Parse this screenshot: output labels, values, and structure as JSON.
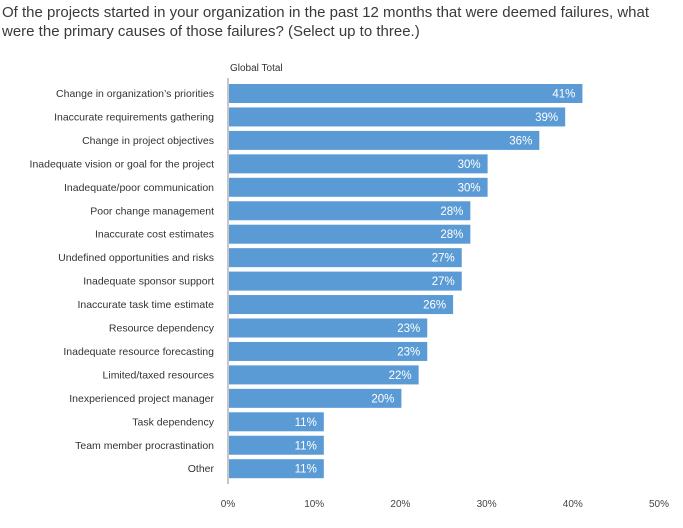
{
  "title": "Of the projects started in your organization in the past 12 months that were deemed failures, what were the primary causes of those failures? (Select up to three.)",
  "chart_data": {
    "type": "bar",
    "orientation": "horizontal",
    "series_name": "Global Total",
    "categories": [
      "Change in organization’s priorities",
      "Inaccurate requirements gathering",
      "Change in project objectives",
      "Inadequate vision or goal for the project",
      "Inadequate/poor communication",
      "Poor change management",
      "Inaccurate cost estimates",
      "Undefined opportunities and risks",
      "Inadequate sponsor support",
      "Inaccurate task time estimate",
      "Resource dependency",
      "Inadequate resource forecasting",
      "Limited/taxed resources",
      "Inexperienced project manager",
      "Task dependency",
      "Team member procrastination",
      "Other"
    ],
    "values": [
      41,
      39,
      36,
      30,
      30,
      28,
      28,
      27,
      27,
      26,
      23,
      23,
      22,
      20,
      11,
      11,
      11
    ],
    "value_labels": [
      "41%",
      "39%",
      "36%",
      "30%",
      "30%",
      "28%",
      "28%",
      "27%",
      "27%",
      "26%",
      "23%",
      "23%",
      "22%",
      "20%",
      "11%",
      "11%",
      "11%"
    ],
    "xlim": [
      0,
      50
    ],
    "xticks": [
      0,
      10,
      20,
      30,
      40,
      50
    ],
    "xtick_labels": [
      "0%",
      "10%",
      "20%",
      "30%",
      "40%",
      "50%"
    ],
    "grid": false,
    "bar_color": "#5b9bd5"
  }
}
